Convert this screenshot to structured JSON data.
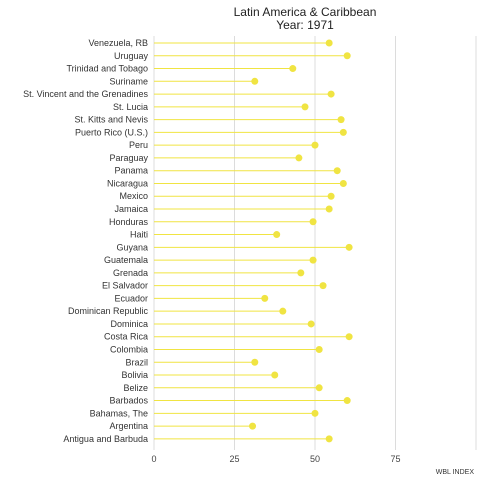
{
  "chart_data": {
    "type": "lollipop",
    "title": "Latin America & Caribbean",
    "subtitle": "Year: 1971",
    "xlabel": "WBL INDEX",
    "ylabel": "",
    "xlim": [
      0,
      100
    ],
    "xticks": [
      0,
      25,
      50,
      75
    ],
    "grid": true,
    "color": "#f0e442",
    "categories": [
      "Venezuela, RB",
      "Uruguay",
      "Trinidad and Tobago",
      "Suriname",
      "St. Vincent and the Grenadines",
      "St. Lucia",
      "St. Kitts and Nevis",
      "Puerto Rico (U.S.)",
      "Peru",
      "Paraguay",
      "Panama",
      "Nicaragua",
      "Mexico",
      "Jamaica",
      "Honduras",
      "Haiti",
      "Guyana",
      "Guatemala",
      "Grenada",
      "El Salvador",
      "Ecuador",
      "Dominican Republic",
      "Dominica",
      "Costa Rica",
      "Colombia",
      "Brazil",
      "Bolivia",
      "Belize",
      "Barbados",
      "Bahamas, The",
      "Argentina",
      "Antigua and Barbuda"
    ],
    "values": [
      54.4,
      60.0,
      43.1,
      31.3,
      55.0,
      46.9,
      58.1,
      58.8,
      50.0,
      45.0,
      56.9,
      58.8,
      55.0,
      54.4,
      49.4,
      38.1,
      60.6,
      49.4,
      45.6,
      52.5,
      34.4,
      40.0,
      48.8,
      60.6,
      51.3,
      31.3,
      37.5,
      51.3,
      60.0,
      50.0,
      30.6,
      54.4
    ]
  }
}
